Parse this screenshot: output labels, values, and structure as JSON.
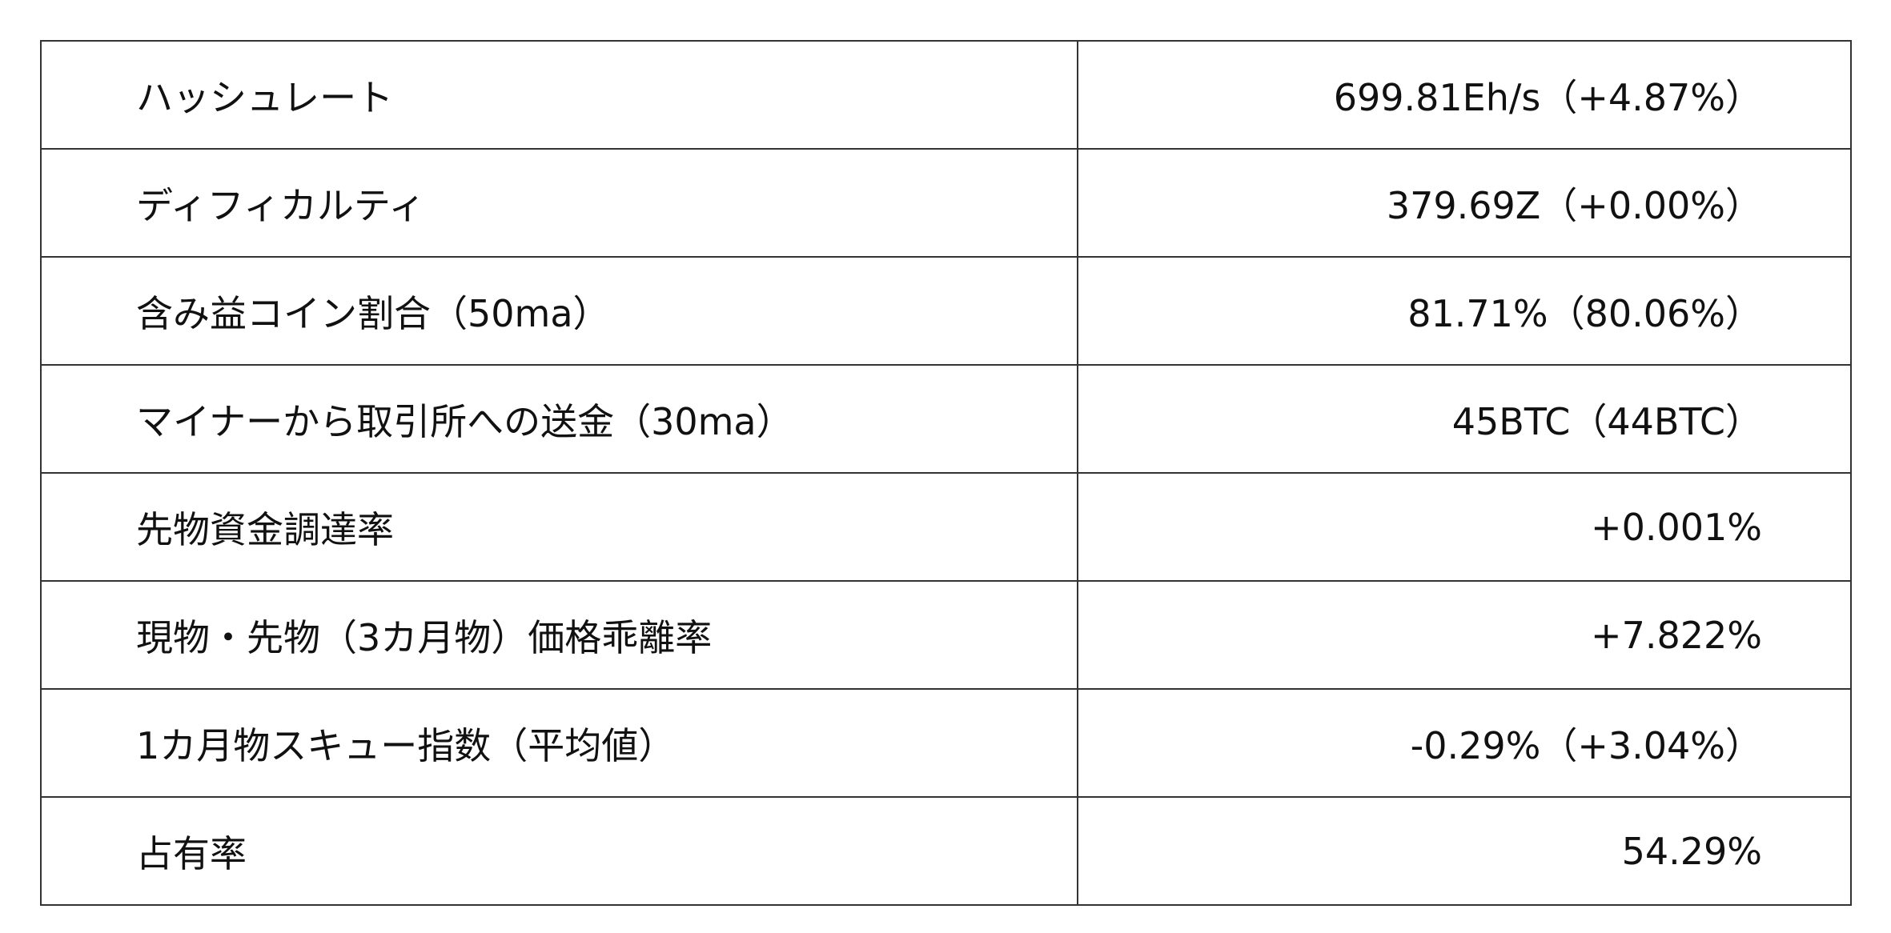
{
  "rows": [
    {
      "label": "ハッシュレート",
      "value": "699.81Eh/s（+4.87%）"
    },
    {
      "label": "ディフィカルティ",
      "value": "379.69Z（+0.00%）"
    },
    {
      "label": "含み益コイン割合（50ma）",
      "value": "81.71%（80.06%）"
    },
    {
      "label": "マイナーから取引所への送金（30ma）",
      "value": "45BTC（44BTC）"
    },
    {
      "label": "先物資金調達率",
      "value": "+0.001%"
    },
    {
      "label": "現物・先物（3カ月物）価格乖離率",
      "value": "+7.822%"
    },
    {
      "label": "1カ月物スキュー指数（平均値）",
      "value": "-0.29%（+3.04%）"
    },
    {
      "label": "占有率",
      "value": "54.29%"
    }
  ]
}
